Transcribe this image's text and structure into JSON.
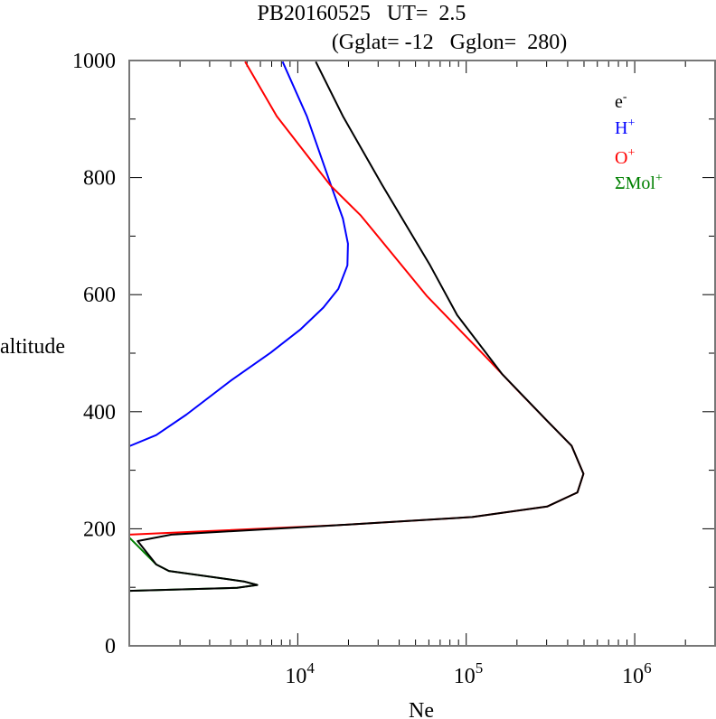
{
  "chart_data": {
    "type": "line",
    "title": "PB20160525   UT=  2.5",
    "subtitle": "(Gglat= -12   Gglon=  280)",
    "xlabel": "Ne",
    "ylabel": "altitude",
    "x_scale": "log",
    "xlim": [
      1000,
      3000000
    ],
    "ylim": [
      0,
      1000
    ],
    "x_tick_labels": [
      {
        "value": 10000,
        "base": "10",
        "exp": "4"
      },
      {
        "value": 100000,
        "base": "10",
        "exp": "5"
      },
      {
        "value": 1000000,
        "base": "10",
        "exp": "6"
      }
    ],
    "y_ticks": [
      0,
      200,
      400,
      600,
      800,
      1000
    ],
    "y_tick_labels": [
      "0",
      "200",
      "400",
      "600",
      "800",
      "1000"
    ],
    "grid": false,
    "legend_placement": "top-right",
    "x_values_are_log10": true,
    "series": [
      {
        "name": "e-",
        "label_base": "e",
        "label_sup": "-",
        "color": "#000000",
        "points": [
          [
            4.107,
            998
          ],
          [
            4.268,
            905
          ],
          [
            4.5,
            788
          ],
          [
            4.786,
            650
          ],
          [
            4.946,
            565
          ],
          [
            5.214,
            464
          ],
          [
            5.482,
            384
          ],
          [
            5.625,
            342
          ],
          [
            5.696,
            294
          ],
          [
            5.66,
            262
          ],
          [
            5.48,
            238
          ],
          [
            5.036,
            220
          ],
          [
            4.23,
            206
          ],
          [
            3.25,
            190
          ],
          [
            3.05,
            179
          ],
          [
            3.16,
            139
          ],
          [
            3.235,
            128
          ],
          [
            3.68,
            110
          ],
          [
            3.76,
            104
          ],
          [
            3.64,
            99
          ],
          [
            3.0,
            94
          ]
        ]
      },
      {
        "name": "H+",
        "label_base": "H",
        "label_sup": "+",
        "color": "#0000ff",
        "points": [
          [
            3.91,
            998
          ],
          [
            4.054,
            905
          ],
          [
            4.196,
            788
          ],
          [
            4.268,
            730
          ],
          [
            4.298,
            687
          ],
          [
            4.295,
            650
          ],
          [
            4.241,
            610
          ],
          [
            4.152,
            578
          ],
          [
            4.018,
            541
          ],
          [
            3.839,
            501
          ],
          [
            3.607,
            454
          ],
          [
            3.339,
            395
          ],
          [
            3.16,
            360
          ],
          [
            3.0,
            341
          ]
        ]
      },
      {
        "name": "O+",
        "label_base": "O",
        "label_sup": "+",
        "color": "#ff0000",
        "points": [
          [
            3.6875,
            998
          ],
          [
            3.875,
            905
          ],
          [
            4.196,
            786
          ],
          [
            4.375,
            735
          ],
          [
            4.768,
            597
          ],
          [
            5.125,
            491
          ],
          [
            5.3,
            438
          ],
          [
            5.482,
            384
          ],
          [
            5.625,
            342
          ],
          [
            5.696,
            294
          ],
          [
            5.66,
            262
          ],
          [
            5.48,
            238
          ],
          [
            5.036,
            220
          ],
          [
            4.23,
            206
          ],
          [
            3.0,
            190
          ]
        ]
      },
      {
        "name": "ΣMol+",
        "label_base": "ΣMol",
        "label_sup": "+",
        "color": "#008000",
        "points": [
          [
            3.0,
            185
          ],
          [
            3.16,
            139
          ],
          [
            3.235,
            128
          ],
          [
            3.68,
            110
          ],
          [
            3.76,
            104
          ],
          [
            3.64,
            99
          ],
          [
            3.0,
            94
          ]
        ]
      }
    ]
  }
}
